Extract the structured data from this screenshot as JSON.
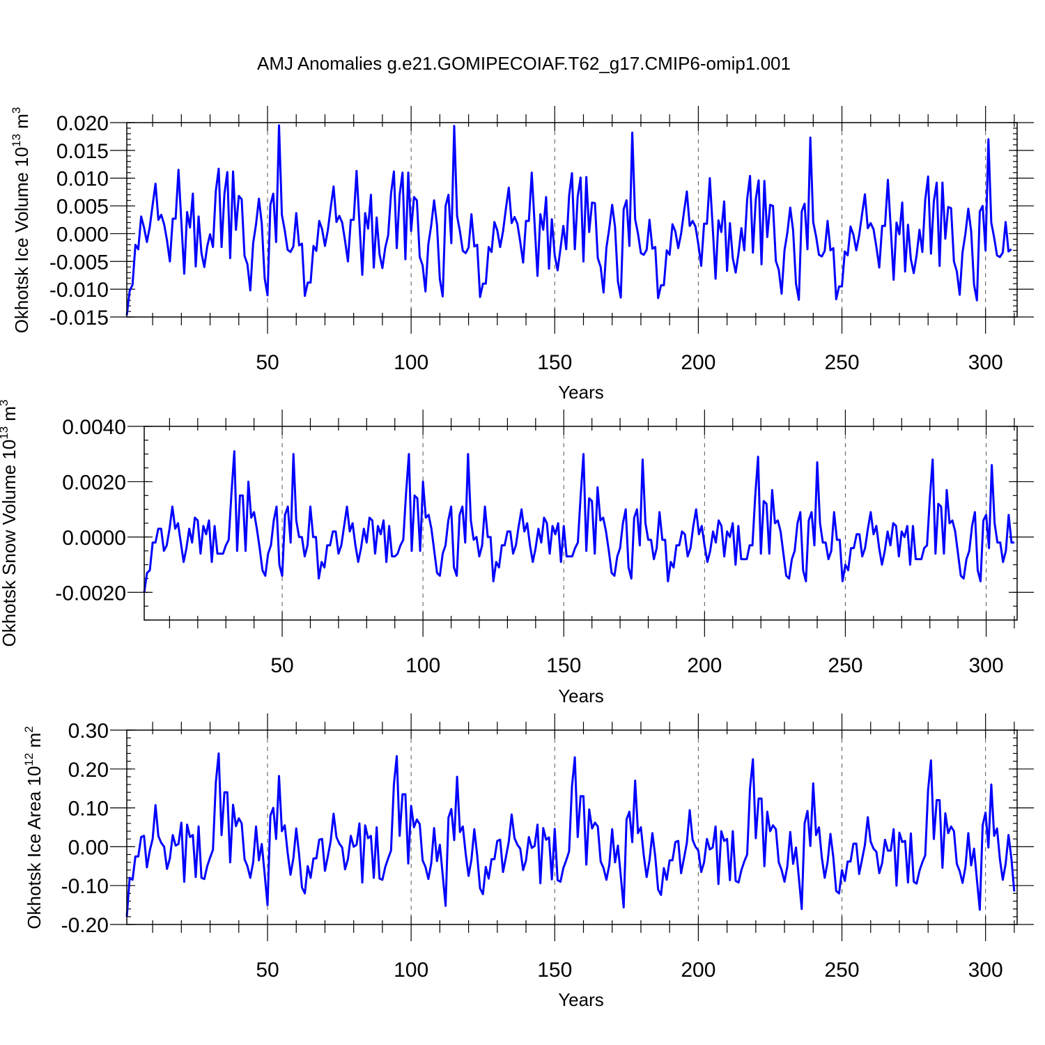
{
  "title": "AMJ Anomalies g.e21.GOMIPECOIAF.T62_g17.CMIP6-omip1.001",
  "colors": {
    "series": "#0000ff",
    "axes": "#000000",
    "grid": "#555555"
  },
  "chart_data": [
    {
      "type": "line",
      "panel": "ice-volume",
      "ylabel_text": "Okhotsk Ice Volume 10",
      "ylabel_exp": "13",
      "ylabel_unit": "m",
      "ylabel_unit_exp": "3",
      "xlabel": "Years",
      "xlim": [
        1,
        311
      ],
      "ylim": [
        -0.015,
        0.02
      ],
      "yticks": [
        -0.015,
        -0.01,
        -0.005,
        0.0,
        0.005,
        0.01,
        0.015,
        0.02
      ],
      "ytick_labels": [
        "-0.015",
        "-0.010",
        "-0.005",
        "0.000",
        "0.005",
        "0.010",
        "0.015",
        "0.020"
      ],
      "yminor": 0.001,
      "xticks": [
        50,
        100,
        150,
        200,
        250,
        300
      ],
      "xtick_labels": [
        "50",
        "100",
        "150",
        "200",
        "250",
        "300"
      ],
      "xminor": 10,
      "grid_x": [
        50,
        100,
        150,
        200,
        250,
        300
      ],
      "values": [
        -0.0147,
        -0.0103,
        -0.0092,
        -0.002,
        -0.0028,
        0.0031,
        0.0011,
        -0.0015,
        0.0012,
        0.0052,
        0.009,
        0.0025,
        0.0034,
        0.0017,
        -0.0012,
        -0.005,
        0.0027,
        0.0027,
        0.0115,
        0.0021,
        -0.0072,
        0.0039,
        0.0011,
        0.0072,
        -0.0059,
        0.0031,
        -0.0035,
        -0.006,
        -0.0023,
        -0.0001,
        -0.0024,
        0.0077,
        0.0117,
        -0.0024,
        0.0072,
        0.0111,
        -0.0044,
        0.0112,
        0.0007,
        0.0068,
        0.0062,
        -0.004,
        -0.0055,
        -0.0102,
        -0.0017,
        0.0017,
        0.0063,
        0.0018,
        -0.008,
        -0.0111,
        0.0052,
        0.0072,
        -0.0015,
        0.0195,
        0.0034,
        0.0006,
        -0.0029,
        -0.0033,
        -0.0023,
        0.0037,
        -0.0021,
        -0.0018,
        -0.0112,
        -0.0088,
        -0.0088,
        -0.0022,
        -0.0031,
        0.0023,
        0.0008,
        -0.0022,
        0.0006,
        0.0047,
        0.0085,
        0.0021,
        0.0032,
        0.002,
        -0.0013,
        -0.005,
        0.0025,
        0.0025,
        0.0113,
        0.0019,
        -0.0074,
        0.0037,
        0.0009,
        0.007,
        -0.0061,
        0.0029,
        -0.0037,
        -0.0062,
        -0.0025,
        -0.0003,
        0.0072,
        0.0112,
        -0.0026,
        0.007,
        0.011,
        -0.0046,
        0.011,
        0.0005,
        0.0066,
        0.006,
        -0.0042,
        -0.0057,
        -0.0104,
        -0.0019,
        0.0015,
        0.006,
        0.0016,
        -0.0082,
        -0.0113,
        0.005,
        0.007,
        -0.0017,
        0.0194,
        0.0032,
        0.0004,
        -0.0031,
        -0.0035,
        -0.0025,
        0.0035,
        -0.0023,
        -0.002,
        -0.0114,
        -0.009,
        -0.009,
        -0.0024,
        -0.0033,
        0.0021,
        0.0006,
        -0.0024,
        0.0004,
        0.0045,
        0.0083,
        0.0019,
        0.003,
        0.0018,
        -0.0015,
        -0.0052,
        0.0023,
        0.0023,
        0.011,
        0.0017,
        -0.0076,
        0.0035,
        0.0007,
        0.0066,
        -0.0063,
        0.0026,
        -0.0039,
        -0.0066,
        -0.0027,
        0.0014,
        -0.0028,
        0.0068,
        0.0109,
        -0.0028,
        0.0067,
        0.0101,
        -0.005,
        0.0102,
        0.0003,
        0.0056,
        0.0055,
        -0.0044,
        -0.006,
        -0.0106,
        -0.0025,
        0.001,
        0.0052,
        0.0012,
        -0.0086,
        -0.0115,
        0.0044,
        0.006,
        -0.0022,
        0.0182,
        0.0026,
        0.0,
        -0.0035,
        -0.0038,
        -0.0029,
        0.0025,
        -0.0027,
        -0.0024,
        -0.0116,
        -0.0093,
        -0.0093,
        -0.003,
        -0.0038,
        0.0017,
        0.0004,
        -0.0026,
        0.0,
        0.0039,
        0.0076,
        0.0014,
        0.0023,
        0.0013,
        -0.0019,
        -0.0058,
        0.0018,
        0.0018,
        0.01,
        0.0012,
        -0.0081,
        0.0024,
        0.0003,
        0.0058,
        -0.0067,
        0.0019,
        -0.0044,
        -0.007,
        -0.0035,
        0.001,
        -0.003,
        0.0062,
        0.0104,
        -0.0034,
        0.0062,
        0.0096,
        -0.0055,
        0.0095,
        -0.0006,
        0.0052,
        0.005,
        -0.0049,
        -0.0065,
        -0.0108,
        -0.003,
        0.0002,
        0.0047,
        0.0006,
        -0.009,
        -0.0119,
        0.004,
        0.0054,
        -0.0028,
        0.0173,
        0.0021,
        -0.0005,
        -0.0038,
        -0.0041,
        -0.0031,
        0.0023,
        -0.003,
        -0.0026,
        -0.0118,
        -0.0095,
        -0.0095,
        -0.0032,
        -0.0039,
        0.0013,
        -0.0002,
        -0.003,
        -0.0003,
        0.0035,
        0.0071,
        0.001,
        0.0019,
        0.0008,
        -0.0024,
        -0.0061,
        0.0014,
        0.0014,
        0.0097,
        0.001,
        -0.0083,
        0.002,
        -0.0001,
        0.0056,
        -0.0068,
        0.0016,
        -0.0046,
        -0.0071,
        -0.0039,
        0.0007,
        -0.0033,
        0.0061,
        0.0103,
        -0.0036,
        0.0058,
        0.0092,
        -0.0058,
        0.0092,
        -0.0009,
        0.0048,
        0.0046,
        -0.005,
        -0.0068,
        -0.011,
        -0.0033,
        0.0,
        0.0045,
        0.0004,
        -0.0092,
        -0.012,
        0.004,
        0.005,
        -0.003,
        0.017,
        0.002,
        -0.0007,
        -0.0039,
        -0.0042,
        -0.0034,
        0.0021,
        -0.0032,
        -0.0028
      ]
    },
    {
      "type": "line",
      "panel": "snow-volume",
      "ylabel_text": "Okhotsk Snow Volume 10",
      "ylabel_exp": "13",
      "ylabel_unit": "m",
      "ylabel_unit_exp": "3",
      "xlabel": "Years",
      "xlim": [
        1,
        311
      ],
      "ylim": [
        -0.003,
        0.004
      ],
      "yticks": [
        -0.002,
        0.0,
        0.002,
        0.004
      ],
      "ytick_labels": [
        "-0.0020",
        "0.0000",
        "0.0020",
        "0.0040"
      ],
      "yminor": 0.0005,
      "xticks": [
        50,
        100,
        150,
        200,
        250,
        300
      ],
      "xtick_labels": [
        "50",
        "100",
        "150",
        "200",
        "250",
        "300"
      ],
      "xminor": 10,
      "grid_x": [
        50,
        100,
        150,
        200,
        250,
        300
      ],
      "values": [
        -0.002,
        -0.0013,
        -0.0012,
        -0.0002,
        -0.0002,
        0.0003,
        0.0003,
        -0.0005,
        -0.0003,
        0.0003,
        0.0011,
        0.0003,
        0.0005,
        -0.0002,
        -0.0009,
        -0.0004,
        0.0003,
        -0.0002,
        0.0007,
        0.0006,
        -0.0006,
        0.0004,
        0.0001,
        0.0006,
        -0.0009,
        0.0004,
        -0.0006,
        -0.0006,
        -0.0006,
        -0.0003,
        -0.0001,
        0.0016,
        0.0031,
        -0.0005,
        0.0015,
        0.0015,
        -0.0005,
        0.002,
        0.0007,
        0.0009,
        0.0003,
        -0.0004,
        -0.0012,
        -0.0014,
        -0.0006,
        -0.0003,
        0.0006,
        0.0011,
        -0.001,
        -0.0014,
        0.0008,
        0.0011,
        -0.0002,
        0.003,
        0.0006,
        0.0,
        0.0,
        -0.0007,
        -0.0003,
        0.0011,
        0.0,
        0.0,
        -0.0015,
        -0.0009,
        -0.0011,
        -0.0003,
        -0.0003,
        0.0002,
        0.0002,
        -0.0006,
        -0.0003,
        0.0004,
        0.0011,
        0.0002,
        0.0005,
        -0.0003,
        -0.0009,
        -0.0004,
        0.0003,
        -0.0002,
        0.0007,
        0.0006,
        -0.0006,
        0.0004,
        0.0001,
        0.0006,
        -0.0009,
        0.0004,
        -0.0007,
        -0.0007,
        -0.0006,
        -0.0003,
        -0.0001,
        0.0016,
        0.003,
        -0.0005,
        0.0015,
        0.0014,
        -0.0005,
        0.002,
        0.0007,
        0.0008,
        0.0003,
        -0.0005,
        -0.0013,
        -0.0014,
        -0.0006,
        -0.0003,
        0.0006,
        0.0011,
        -0.0011,
        -0.0014,
        0.0008,
        0.0011,
        -0.0002,
        0.003,
        0.0006,
        -0.0001,
        0.0,
        -0.0007,
        -0.0003,
        0.0011,
        0.0,
        0.0,
        -0.0016,
        -0.0009,
        -0.0011,
        -0.0003,
        -0.0003,
        0.0002,
        0.0002,
        -0.0006,
        -0.0003,
        0.0004,
        0.001,
        0.0002,
        0.0005,
        -0.0003,
        -0.0009,
        -0.0004,
        0.0003,
        -0.0002,
        0.0007,
        0.0005,
        -0.0006,
        0.0004,
        0.0001,
        0.0005,
        -0.0009,
        0.0004,
        -0.0007,
        -0.0007,
        -0.0007,
        -0.0004,
        -0.0002,
        0.0015,
        0.003,
        -0.0005,
        0.0014,
        0.0013,
        -0.0006,
        0.0018,
        0.0006,
        0.0007,
        0.0002,
        -0.0005,
        -0.0013,
        -0.0014,
        -0.0007,
        -0.0004,
        0.0005,
        0.001,
        -0.0011,
        -0.0015,
        0.0007,
        0.001,
        -0.0003,
        0.0028,
        0.0005,
        -0.0001,
        -0.0001,
        -0.0008,
        -0.0004,
        0.0009,
        -0.0001,
        -0.0001,
        -0.0016,
        -0.0009,
        -0.0011,
        -0.0003,
        -0.0003,
        0.0002,
        0.0001,
        -0.0007,
        -0.0004,
        0.0004,
        0.001,
        0.0001,
        0.0004,
        -0.0003,
        -0.0009,
        -0.0005,
        0.0002,
        -0.0002,
        0.0006,
        0.0004,
        -0.0007,
        0.0002,
        0.0,
        0.0005,
        -0.001,
        0.0004,
        -0.0008,
        -0.0008,
        -0.0008,
        -0.0003,
        -0.0003,
        0.0015,
        0.0029,
        -0.0006,
        0.0013,
        0.0012,
        -0.0006,
        0.0017,
        0.0005,
        0.0006,
        0.0002,
        -0.0006,
        -0.0014,
        -0.0015,
        -0.0008,
        -0.0005,
        0.0005,
        0.0009,
        -0.0012,
        -0.0016,
        0.0006,
        0.0009,
        -0.0003,
        0.0027,
        0.0005,
        -0.0002,
        -0.0002,
        -0.0008,
        -0.0005,
        0.0009,
        -0.0001,
        -0.0001,
        -0.0016,
        -0.001,
        -0.0012,
        -0.0004,
        -0.0004,
        0.0001,
        0.0001,
        -0.0007,
        -0.0004,
        0.0003,
        0.0009,
        0.0001,
        0.0004,
        -0.0004,
        -0.001,
        -0.0005,
        0.0002,
        -0.0003,
        0.0005,
        0.0004,
        -0.0007,
        0.0002,
        0.0,
        0.0004,
        -0.001,
        0.0004,
        -0.0008,
        -0.0008,
        -0.0008,
        -0.0004,
        -0.0003,
        0.0014,
        0.0028,
        -0.0006,
        0.0012,
        0.0011,
        -0.0006,
        0.0017,
        0.0005,
        0.0006,
        0.0002,
        -0.0006,
        -0.0014,
        -0.0015,
        -0.0008,
        -0.0005,
        0.0004,
        0.0009,
        -0.0012,
        -0.0016,
        0.0006,
        0.0008,
        -0.0004,
        0.0026,
        0.0005,
        -0.0002,
        -0.0002,
        -0.0009,
        -0.0005,
        0.0008,
        -0.0002,
        -0.0002
      ]
    },
    {
      "type": "line",
      "panel": "ice-area",
      "ylabel_text": "Okhotsk Ice Area 10",
      "ylabel_exp": "12",
      "ylabel_unit": "m",
      "ylabel_unit_exp": "2",
      "xlabel": "Years",
      "xlim": [
        1,
        311
      ],
      "ylim": [
        -0.2,
        0.3
      ],
      "yticks": [
        -0.2,
        -0.1,
        0.0,
        0.1,
        0.2,
        0.3
      ],
      "ytick_labels": [
        "-0.20",
        "-0.10",
        "0.00",
        "0.10",
        "0.20",
        "0.30"
      ],
      "yminor": 0.02,
      "xticks": [
        50,
        100,
        150,
        200,
        250,
        300
      ],
      "xtick_labels": [
        "50",
        "100",
        "150",
        "200",
        "250",
        "300"
      ],
      "xminor": 10,
      "grid_x": [
        50,
        100,
        150,
        200,
        250,
        300
      ],
      "values": [
        -0.18,
        -0.08,
        -0.085,
        -0.025,
        -0.025,
        0.025,
        0.028,
        -0.053,
        -0.01,
        0.02,
        0.107,
        0.027,
        0.01,
        0.0,
        -0.057,
        -0.03,
        0.03,
        0.003,
        0.007,
        0.062,
        -0.09,
        0.057,
        0.025,
        0.03,
        -0.078,
        0.052,
        -0.08,
        -0.083,
        -0.05,
        -0.028,
        -0.008,
        0.165,
        0.24,
        0.03,
        0.14,
        0.14,
        -0.04,
        0.108,
        0.053,
        0.073,
        0.06,
        -0.032,
        -0.05,
        -0.08,
        -0.04,
        0.052,
        -0.035,
        0.007,
        -0.07,
        -0.15,
        0.08,
        0.1,
        0.02,
        0.182,
        0.04,
        0.055,
        -0.015,
        -0.072,
        -0.03,
        0.047,
        -0.02,
        -0.105,
        -0.12,
        -0.05,
        -0.08,
        -0.03,
        -0.03,
        0.018,
        0.02,
        -0.062,
        -0.025,
        0.015,
        0.085,
        0.025,
        0.008,
        -0.002,
        -0.058,
        -0.032,
        0.028,
        0.0,
        0.005,
        0.06,
        -0.092,
        0.055,
        0.022,
        0.028,
        -0.08,
        0.05,
        -0.082,
        -0.085,
        -0.052,
        -0.03,
        -0.01,
        0.16,
        0.233,
        0.028,
        0.135,
        0.135,
        -0.043,
        0.105,
        0.05,
        0.07,
        0.058,
        -0.035,
        -0.052,
        -0.083,
        -0.043,
        0.048,
        -0.037,
        0.005,
        -0.073,
        -0.152,
        0.075,
        0.097,
        0.017,
        0.18,
        0.038,
        0.052,
        -0.018,
        -0.075,
        -0.033,
        0.045,
        -0.022,
        -0.107,
        -0.122,
        -0.052,
        -0.082,
        -0.032,
        -0.032,
        0.015,
        0.018,
        -0.065,
        -0.027,
        0.013,
        0.083,
        0.022,
        0.005,
        -0.005,
        -0.06,
        -0.035,
        0.025,
        -0.003,
        0.002,
        0.057,
        -0.094,
        0.048,
        0.018,
        0.024,
        -0.084,
        0.046,
        -0.086,
        -0.09,
        -0.055,
        -0.035,
        -0.012,
        0.155,
        0.23,
        0.025,
        0.13,
        0.13,
        -0.046,
        0.096,
        0.047,
        0.062,
        0.052,
        -0.038,
        -0.055,
        -0.085,
        -0.047,
        0.045,
        -0.04,
        0.003,
        -0.075,
        -0.156,
        0.07,
        0.09,
        0.012,
        0.17,
        0.035,
        0.05,
        -0.022,
        -0.078,
        -0.035,
        0.035,
        -0.025,
        -0.11,
        -0.124,
        -0.055,
        -0.085,
        -0.035,
        -0.035,
        0.012,
        0.015,
        -0.068,
        -0.03,
        0.01,
        0.094,
        0.018,
        0.0,
        -0.01,
        -0.065,
        -0.04,
        0.02,
        -0.007,
        -0.002,
        0.052,
        -0.096,
        0.04,
        0.015,
        0.02,
        -0.086,
        0.04,
        -0.088,
        -0.092,
        -0.06,
        -0.038,
        -0.02,
        0.15,
        0.225,
        0.022,
        0.124,
        0.124,
        -0.05,
        0.09,
        0.04,
        0.055,
        0.045,
        -0.04,
        -0.06,
        -0.09,
        -0.05,
        0.038,
        -0.044,
        -0.002,
        -0.08,
        -0.16,
        0.06,
        0.092,
        0.002,
        0.163,
        0.03,
        0.05,
        -0.028,
        -0.08,
        -0.04,
        0.033,
        -0.027,
        -0.114,
        -0.12,
        -0.06,
        -0.088,
        -0.038,
        -0.038,
        0.008,
        0.008,
        -0.07,
        -0.033,
        0.005,
        0.076,
        0.013,
        -0.005,
        -0.013,
        -0.068,
        -0.042,
        0.018,
        -0.01,
        -0.01,
        0.045,
        -0.1,
        0.036,
        0.012,
        0.015,
        -0.092,
        0.034,
        -0.09,
        -0.095,
        -0.062,
        -0.04,
        -0.022,
        0.146,
        0.222,
        0.02,
        0.12,
        0.12,
        -0.054,
        0.086,
        0.035,
        0.052,
        0.04,
        -0.044,
        -0.063,
        -0.093,
        -0.052,
        0.035,
        -0.048,
        -0.005,
        -0.085,
        -0.162,
        0.055,
        0.088,
        -0.002,
        0.16,
        0.028,
        0.047,
        -0.032,
        -0.085,
        -0.044,
        0.03,
        -0.03,
        -0.115
      ]
    }
  ]
}
